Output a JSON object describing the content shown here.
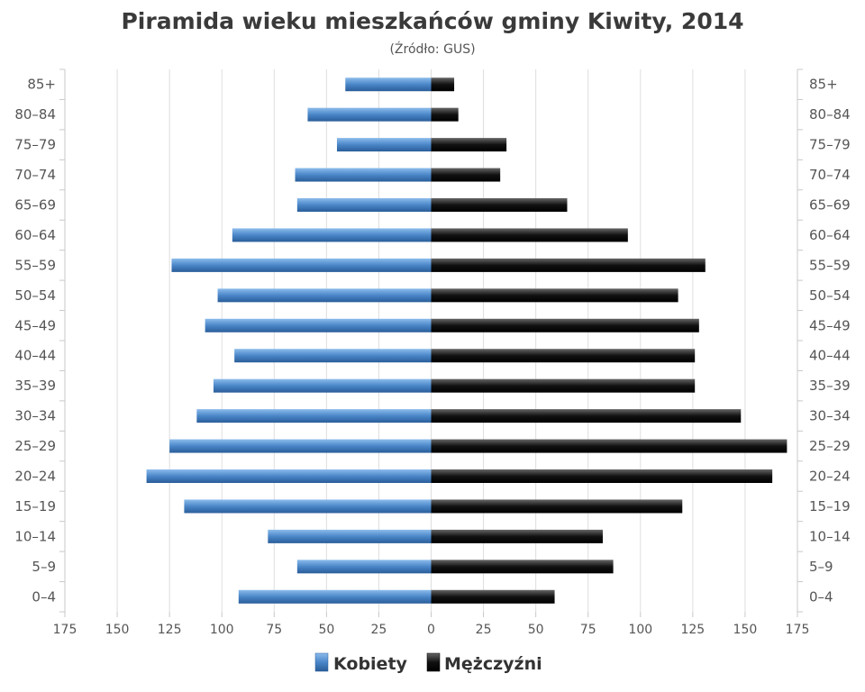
{
  "chart_data": {
    "type": "bar",
    "orientation": "horizontal-population-pyramid",
    "title": "Piramida wieku mieszkańców gminy Kiwity, 2014",
    "subtitle": "(Źródło: GUS)",
    "categories": [
      "85+",
      "80–84",
      "75–79",
      "70–74",
      "65–69",
      "60–64",
      "55–59",
      "50–54",
      "45–49",
      "40–44",
      "35–39",
      "30–34",
      "25–29",
      "20–24",
      "15–19",
      "10–14",
      "5–9",
      "0–4"
    ],
    "series": [
      {
        "name": "Kobiety",
        "side": "left",
        "color": "#4a86c8",
        "values": [
          41,
          59,
          45,
          65,
          64,
          95,
          124,
          102,
          108,
          94,
          104,
          112,
          125,
          136,
          118,
          78,
          64,
          92
        ]
      },
      {
        "name": "Mężczyźni",
        "side": "right",
        "color": "#111111",
        "values": [
          11,
          13,
          36,
          33,
          65,
          94,
          131,
          118,
          128,
          126,
          126,
          148,
          170,
          163,
          120,
          82,
          87,
          59
        ]
      }
    ],
    "xlim": [
      -175,
      175
    ],
    "xticks": [
      "175",
      "150",
      "125",
      "100",
      "75",
      "50",
      "25",
      "0",
      "25",
      "50",
      "75",
      "100",
      "125",
      "150",
      "175"
    ],
    "grid": true,
    "legend_position": "bottom-center"
  }
}
